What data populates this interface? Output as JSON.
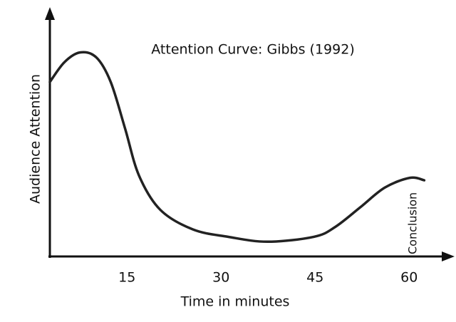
{
  "chart_data": {
    "type": "line",
    "title": "Attention Curve: Gibbs (1992)",
    "x_label": "Time in minutes",
    "y_label": "Audience Attention",
    "annotation": "Conclusion",
    "x": [
      2.7,
      5.0,
      7.5,
      10.1,
      12.4,
      14.7,
      16.9,
      20.3,
      25.5,
      31.1,
      37.4,
      44.8,
      48.2,
      52.2,
      56.1,
      60.1,
      62.4
    ],
    "series": [
      {
        "name": "Audience Attention",
        "color": "#222222",
        "values": [
          71,
          79,
          83,
          81,
          71,
          52,
          33,
          19,
          11,
          8,
          6,
          8,
          12,
          20,
          28,
          32,
          31
        ]
      }
    ],
    "xlim": [
      2.7,
      66.9
    ],
    "xticks": [
      15,
      30,
      45,
      60
    ],
    "ylim": [
      0,
      100
    ],
    "grid": false
  }
}
